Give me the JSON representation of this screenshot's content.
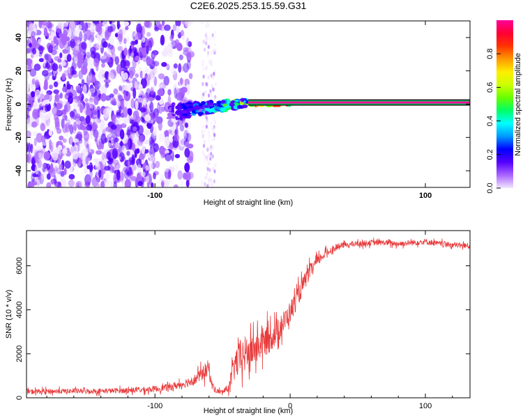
{
  "title": "C2E6.2025.253.15.59.G31",
  "chart_data": [
    {
      "type": "heatmap",
      "xlabel": "Height of straight line (km)",
      "ylabel": "Frequency (Hz)",
      "xlim": [
        -195,
        133
      ],
      "ylim": [
        -50,
        50
      ],
      "xticks": [
        -100,
        100
      ],
      "xtick_labels": [
        "-100",
        "100"
      ],
      "yticks": [
        -40,
        -20,
        0,
        20,
        40
      ],
      "ytick_labels": [
        "-40",
        "-20",
        "0",
        "20",
        "40"
      ],
      "colorbar": {
        "label": "Normalized spectral amplitude",
        "range": [
          0,
          1
        ],
        "ticks": [
          0.0,
          0.2,
          0.4,
          0.6,
          0.8
        ],
        "tick_labels": [
          "0.0",
          "0.2",
          "0.4",
          "0.6",
          "0.8"
        ],
        "colormap": [
          "#f2e6ff",
          "#aa66ff",
          "#5500ff",
          "#0000ff",
          "#0099ff",
          "#00ffff",
          "#00ff66",
          "#66ff00",
          "#ccff00",
          "#ffee00",
          "#ff9900",
          "#ff3300",
          "#ff0033",
          "#ff0099"
        ]
      },
      "signal_line": {
        "frequency_hz": 1,
        "from_km": 0,
        "to_km": 133,
        "amplitude": 0.95
      },
      "features": [
        {
          "name": "broadband noise region",
          "x_range": [
            -195,
            -85
          ],
          "amplitude": 0.15
        },
        {
          "name": "noise column",
          "x_range": [
            -65,
            -55
          ],
          "amplitude": 0.1
        },
        {
          "name": "emerging carrier",
          "x_range": [
            -90,
            -30
          ],
          "freq_start_hz": -5,
          "freq_end_hz": 1,
          "amplitude": 0.45
        },
        {
          "name": "carrier onset",
          "x_range": [
            -30,
            0
          ],
          "freq_hz": 0.5,
          "amplitude": 0.8
        }
      ]
    },
    {
      "type": "line",
      "xlabel": "Height of straight line (km)",
      "ylabel": "SNR (10 * v/v)",
      "xlim": [
        -195,
        133
      ],
      "ylim": [
        0,
        7600
      ],
      "xticks": [
        -100,
        0,
        100
      ],
      "xtick_labels": [
        "-100",
        "0",
        "100"
      ],
      "yticks": [
        0,
        2000,
        4000,
        6000
      ],
      "ytick_labels": [
        "0",
        "2000",
        "4000",
        "6000"
      ],
      "series": [
        {
          "name": "SNR",
          "color": "#e8393a",
          "x": [
            -195,
            -170,
            -150,
            -130,
            -110,
            -100,
            -90,
            -80,
            -70,
            -65,
            -60,
            -58,
            -55,
            -50,
            -45,
            -42,
            -40,
            -35,
            -30,
            -25,
            -20,
            -15,
            -10,
            -5,
            0,
            5,
            10,
            15,
            20,
            25,
            30,
            35,
            40,
            50,
            60,
            70,
            80,
            90,
            100,
            110,
            120,
            133
          ],
          "values": [
            280,
            300,
            300,
            320,
            360,
            400,
            480,
            620,
            850,
            1100,
            1350,
            600,
            320,
            250,
            500,
            1300,
            1600,
            1900,
            2100,
            2300,
            2500,
            2700,
            3000,
            3400,
            3900,
            4500,
            5200,
            5800,
            6200,
            6500,
            6700,
            6850,
            6950,
            7000,
            7050,
            7050,
            7000,
            7050,
            7100,
            7000,
            6950,
            6900
          ],
          "noise_amplitude": [
            220,
            230,
            230,
            240,
            260,
            280,
            320,
            380,
            500,
            650,
            850,
            450,
            250,
            180,
            450,
            1200,
            1500,
            1700,
            1600,
            1500,
            1400,
            1300,
            1200,
            1100,
            1000,
            900,
            800,
            650,
            500,
            400,
            320,
            280,
            260,
            260,
            260,
            260,
            260,
            260,
            280,
            260,
            260,
            260
          ]
        }
      ]
    }
  ]
}
